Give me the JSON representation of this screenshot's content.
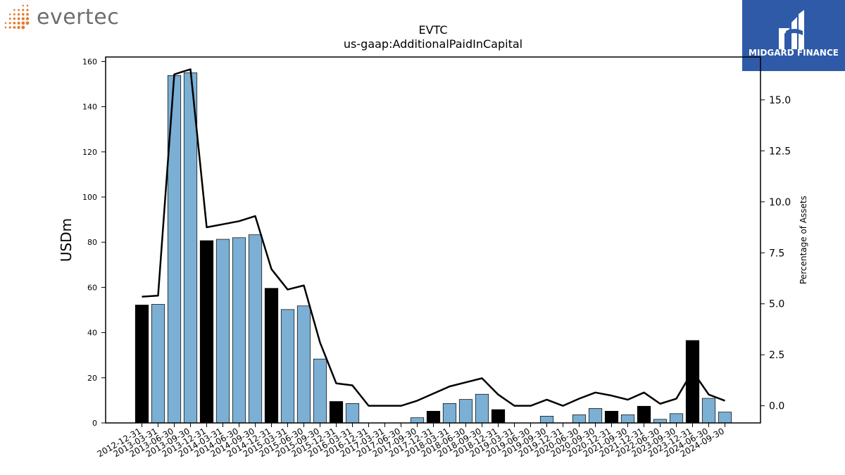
{
  "logos": {
    "left_text": "evertec",
    "right_text": "MIDGARD FINANCE"
  },
  "colors": {
    "bar_default": "#7bafd4",
    "bar_highlight": "#000000",
    "line": "#000000",
    "logo_orange": "#e8792b",
    "logo_blue": "#2f5aa8"
  },
  "chart_data": {
    "type": "bar",
    "title": "EVTC",
    "subtitle": "us-gaap:AdditionalPaidInCapital",
    "ylabel": "USDm",
    "y2label": "Percentage of Assets",
    "ylim": [
      0,
      162
    ],
    "y2lim": [
      -0.84,
      17.1
    ],
    "yticks": [
      0,
      20,
      40,
      60,
      80,
      100,
      120,
      140,
      160
    ],
    "y2ticks": [
      0.0,
      2.5,
      5.0,
      7.5,
      10.0,
      12.5,
      15.0
    ],
    "categories": [
      "2012-12-31",
      "2013-03-31",
      "2013-06-30",
      "2013-09-30",
      "2013-12-31",
      "2014-03-31",
      "2014-06-30",
      "2014-09-30",
      "2014-12-31",
      "2015-03-31",
      "2015-06-30",
      "2015-09-30",
      "2015-12-31",
      "2016-03-31",
      "2016-12-31",
      "2017-03-31",
      "2017-06-30",
      "2017-09-30",
      "2017-12-31",
      "2018-03-31",
      "2018-06-30",
      "2018-09-30",
      "2018-12-31",
      "2019-03-31",
      "2019-06-30",
      "2019-09-30",
      "2019-12-31",
      "2020-06-30",
      "2020-09-30",
      "2020-12-31",
      "2021-09-30",
      "2021-12-31",
      "2022-06-30",
      "2023-09-30",
      "2023-12-31",
      "2024-06-30",
      "2024-09-30"
    ],
    "series": [
      {
        "type": "bar",
        "values": [
          52.2,
          52.5,
          153.8,
          155.0,
          80.7,
          81.3,
          82.0,
          83.3,
          59.6,
          50.2,
          51.8,
          28.3,
          9.5,
          8.6,
          0,
          0,
          0,
          2.3,
          5.2,
          8.6,
          10.4,
          12.7,
          5.9,
          0,
          0,
          3.0,
          0,
          3.6,
          6.4,
          5.2,
          3.6,
          7.4,
          1.6,
          4.1,
          36.5,
          10.9,
          4.8
        ],
        "highlighted": [
          0,
          4,
          8,
          12,
          18,
          22,
          29,
          31,
          34
        ]
      },
      {
        "type": "line",
        "axis": "right",
        "values": [
          5.35,
          5.4,
          16.25,
          16.5,
          8.75,
          8.9,
          9.05,
          9.3,
          6.7,
          5.7,
          5.9,
          3.1,
          1.1,
          1.0,
          0,
          0,
          0,
          0.25,
          0.6,
          0.95,
          1.15,
          1.35,
          0.55,
          0,
          0,
          0.3,
          0,
          0.35,
          0.65,
          0.5,
          0.3,
          0.65,
          0.1,
          0.35,
          1.7,
          0.55,
          0.25
        ]
      }
    ]
  }
}
